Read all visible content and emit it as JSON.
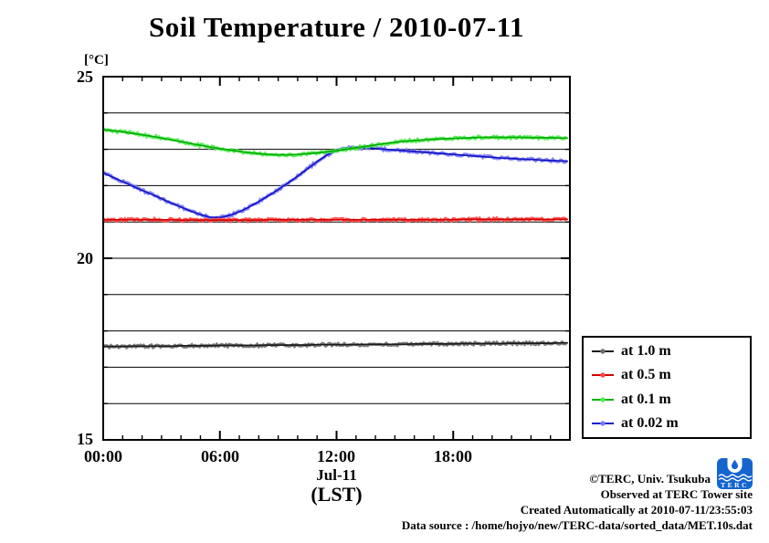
{
  "title": "Soil Temperature / 2010-07-11",
  "axis": {
    "y_unit_label": "[°C]",
    "y_tick_labels": [
      "25",
      "20",
      "15"
    ],
    "x_tick_labels": [
      "00:00",
      "06:00",
      "12:00",
      "18:00"
    ],
    "x_date_label": "Jul-11",
    "x_timezone_label": "(LST)"
  },
  "footer": {
    "lines": [
      "©TERC, Univ. Tsukuba",
      "Observed at TERC Tower site",
      "Created Automatically at 2010-07-11/23:55:03",
      "Data source : /home/hojyo/new/TERC-data/sorted_data/MET.10s.dat"
    ],
    "logo_text": "TERC",
    "logo_color": "#1565cf"
  },
  "chart_data": {
    "type": "line",
    "title": "Soil Temperature / 2010-07-11",
    "ylabel": "[°C]",
    "xlabel": "Jul-11 (LST)",
    "xlim": [
      0,
      24
    ],
    "ylim": [
      15,
      25
    ],
    "x_major_ticks_hours": [
      0,
      6,
      12,
      18,
      24
    ],
    "x_minor_step_hours": 1,
    "y_major_ticks": [
      15,
      20,
      25
    ],
    "y_minor_step": 1,
    "grid": "horizontal-every-1-degree",
    "legend_position": "outside-right-bottom",
    "frame_color": "#000000",
    "x_hours": [
      0,
      0.5,
      1,
      1.5,
      2,
      2.5,
      3,
      3.5,
      4,
      4.5,
      5,
      5.5,
      6,
      6.5,
      7,
      7.5,
      8,
      8.5,
      9,
      9.5,
      10,
      10.5,
      11,
      11.5,
      12,
      12.5,
      13,
      13.5,
      14,
      14.5,
      15,
      15.5,
      16,
      16.5,
      17,
      17.5,
      18,
      18.5,
      19,
      19.5,
      20,
      20.5,
      21,
      21.5,
      22,
      22.5,
      23,
      23.5,
      23.9
    ],
    "series": [
      {
        "name": "at 1.0 m",
        "depth_m": 1.0,
        "color": "#1c1c1c",
        "band_color": "#6e6e6e",
        "values": [
          17.57,
          17.57,
          17.57,
          17.58,
          17.58,
          17.58,
          17.58,
          17.58,
          17.59,
          17.59,
          17.59,
          17.59,
          17.6,
          17.6,
          17.6,
          17.6,
          17.6,
          17.61,
          17.61,
          17.61,
          17.61,
          17.61,
          17.62,
          17.62,
          17.62,
          17.62,
          17.62,
          17.63,
          17.63,
          17.63,
          17.63,
          17.63,
          17.64,
          17.64,
          17.64,
          17.64,
          17.64,
          17.65,
          17.65,
          17.65,
          17.65,
          17.65,
          17.66,
          17.66,
          17.66,
          17.66,
          17.66,
          17.67,
          17.67
        ]
      },
      {
        "name": "at 0.5 m",
        "depth_m": 0.5,
        "color": "#d40000",
        "band_color": "#ff4a4a",
        "values": [
          21.06,
          21.06,
          21.06,
          21.06,
          21.06,
          21.06,
          21.06,
          21.06,
          21.05,
          21.05,
          21.05,
          21.05,
          21.05,
          21.05,
          21.05,
          21.05,
          21.05,
          21.06,
          21.06,
          21.06,
          21.06,
          21.06,
          21.06,
          21.06,
          21.06,
          21.06,
          21.06,
          21.06,
          21.06,
          21.06,
          21.06,
          21.06,
          21.06,
          21.06,
          21.06,
          21.06,
          21.06,
          21.07,
          21.07,
          21.07,
          21.07,
          21.07,
          21.07,
          21.07,
          21.07,
          21.07,
          21.07,
          21.07,
          21.07
        ]
      },
      {
        "name": "at 0.1 m",
        "depth_m": 0.1,
        "color": "#00b000",
        "band_color": "#55ea55",
        "values": [
          23.54,
          23.51,
          23.48,
          23.44,
          23.4,
          23.36,
          23.31,
          23.26,
          23.21,
          23.16,
          23.11,
          23.06,
          23.02,
          22.98,
          22.94,
          22.91,
          22.88,
          22.86,
          22.85,
          22.85,
          22.86,
          22.88,
          22.9,
          22.93,
          22.96,
          23.0,
          23.04,
          23.08,
          23.12,
          23.16,
          23.19,
          23.22,
          23.24,
          23.26,
          23.28,
          23.29,
          23.3,
          23.31,
          23.32,
          23.33,
          23.33,
          23.33,
          23.33,
          23.33,
          23.32,
          23.32,
          23.32,
          23.31,
          23.31
        ]
      },
      {
        "name": "at 0.02 m",
        "depth_m": 0.02,
        "color": "#1414c8",
        "band_color": "#7b7bf0",
        "values": [
          22.35,
          22.23,
          22.11,
          21.99,
          21.87,
          21.76,
          21.64,
          21.52,
          21.41,
          21.3,
          21.2,
          21.13,
          21.12,
          21.18,
          21.28,
          21.41,
          21.56,
          21.72,
          21.89,
          22.07,
          22.26,
          22.46,
          22.66,
          22.84,
          22.97,
          23.03,
          23.05,
          23.04,
          23.02,
          23.0,
          22.98,
          22.96,
          22.94,
          22.92,
          22.9,
          22.88,
          22.86,
          22.84,
          22.82,
          22.8,
          22.78,
          22.76,
          22.75,
          22.73,
          22.72,
          22.7,
          22.69,
          22.68,
          22.67
        ]
      }
    ],
    "draw_order": [
      0,
      3,
      1,
      2
    ]
  }
}
